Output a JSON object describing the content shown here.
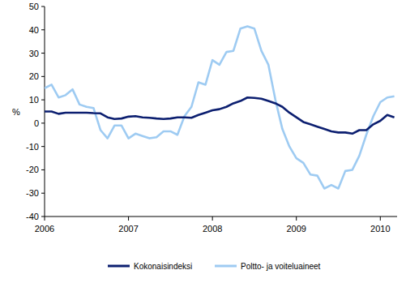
{
  "chart_data": {
    "type": "line",
    "y_label": "%",
    "x": [
      2006,
      2006.083,
      2006.167,
      2006.25,
      2006.333,
      2006.417,
      2006.5,
      2006.583,
      2006.667,
      2006.75,
      2006.833,
      2006.917,
      2007,
      2007.083,
      2007.167,
      2007.25,
      2007.333,
      2007.417,
      2007.5,
      2007.583,
      2007.667,
      2007.75,
      2007.833,
      2007.917,
      2008,
      2008.083,
      2008.167,
      2008.25,
      2008.333,
      2008.417,
      2008.5,
      2008.583,
      2008.667,
      2008.75,
      2008.833,
      2008.917,
      2009,
      2009.083,
      2009.167,
      2009.25,
      2009.333,
      2009.417,
      2009.5,
      2009.583,
      2009.667,
      2009.75,
      2009.833,
      2009.917,
      2010,
      2010.083,
      2010.167
    ],
    "series": [
      {
        "name": "Kokonaisindeksi",
        "color": "#0c1f70",
        "values": [
          5,
          5,
          4,
          4.5,
          4.5,
          4.5,
          4.5,
          4.3,
          4.2,
          2.5,
          1.8,
          2,
          2.8,
          3,
          2.5,
          2.3,
          2,
          1.8,
          2,
          2.5,
          2.5,
          2.3,
          3.5,
          4.5,
          5.5,
          6,
          7,
          8.5,
          9.5,
          11,
          10.8,
          10.5,
          9.5,
          8.5,
          7,
          4.5,
          2.5,
          0.5,
          -0.5,
          -1.5,
          -2.5,
          -3.5,
          -4,
          -4,
          -4.5,
          -3,
          -3,
          -0.5,
          1,
          3.5,
          2.5
        ]
      },
      {
        "name": "Poltto- ja voiteluaineet",
        "color": "#9ecbf2",
        "values": [
          15,
          16.5,
          11,
          12,
          14.5,
          8,
          7,
          6.5,
          -3,
          -6.5,
          -1,
          -1,
          -6.5,
          -4.5,
          -5.5,
          -6.5,
          -6,
          -3.5,
          -3.5,
          -5,
          3,
          7,
          17.5,
          16.5,
          27,
          25,
          30.5,
          31,
          40.5,
          41.5,
          40.5,
          31,
          25,
          10,
          -2.5,
          -10,
          -15,
          -17,
          -22,
          -22.5,
          -28,
          -26.5,
          -28,
          -20.5,
          -20,
          -14,
          -5,
          3,
          9,
          11,
          11.5
        ]
      }
    ],
    "xlim": [
      2006,
      2010.2
    ],
    "xticks": [
      2006,
      2007,
      2008,
      2009,
      2010
    ],
    "ylim": [
      -40,
      50
    ],
    "yticks": [
      -40,
      -30,
      -20,
      -10,
      0,
      10,
      20,
      30,
      40,
      50
    ],
    "grid": false,
    "legend": "bottom"
  }
}
